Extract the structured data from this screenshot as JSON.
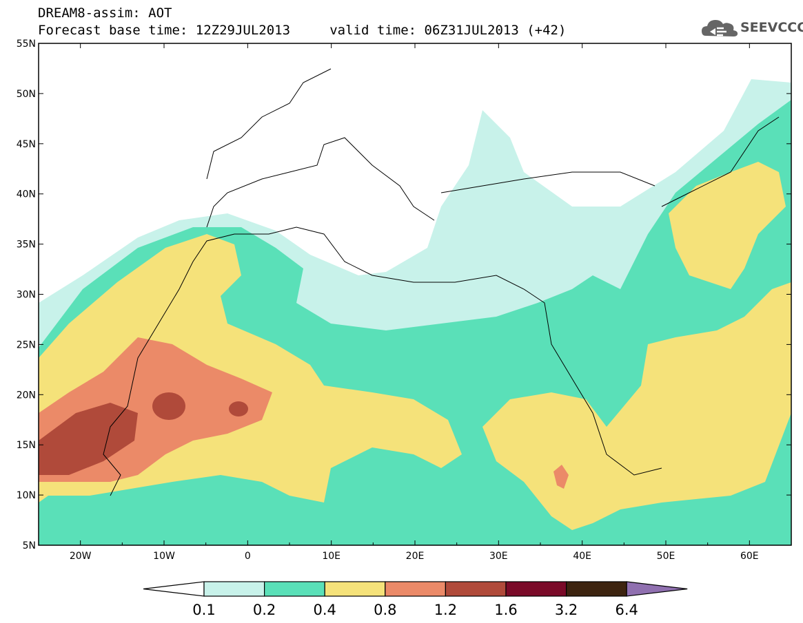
{
  "header": {
    "line1": "DREAM8-assim: AOT",
    "line2": "Forecast base time: 12Z29JUL2013     valid time: 06Z31JUL2013 (+42)"
  },
  "logo": {
    "text": "SEEVCCC",
    "icon": "cloud-icon"
  },
  "map": {
    "lon_range": [
      -25,
      65
    ],
    "lat_range": [
      5,
      55
    ],
    "lon_ticks": [
      "20W",
      "10W",
      "0",
      "10E",
      "20E",
      "30E",
      "40E",
      "50E",
      "60E"
    ],
    "lat_ticks": [
      "5N",
      "10N",
      "15N",
      "20N",
      "25N",
      "30N",
      "35N",
      "40N",
      "45N",
      "50N",
      "55N"
    ]
  },
  "colorbar": {
    "labels": [
      "0.1",
      "0.2",
      "0.4",
      "0.8",
      "1.2",
      "1.6",
      "3.2",
      "6.4"
    ],
    "colors": [
      "#ffffff",
      "#c8f2ea",
      "#5ae0b8",
      "#f5e27a",
      "#eb8a68",
      "#b04a3a",
      "#7a0a28",
      "#3d2410",
      "#9070b0"
    ]
  }
}
